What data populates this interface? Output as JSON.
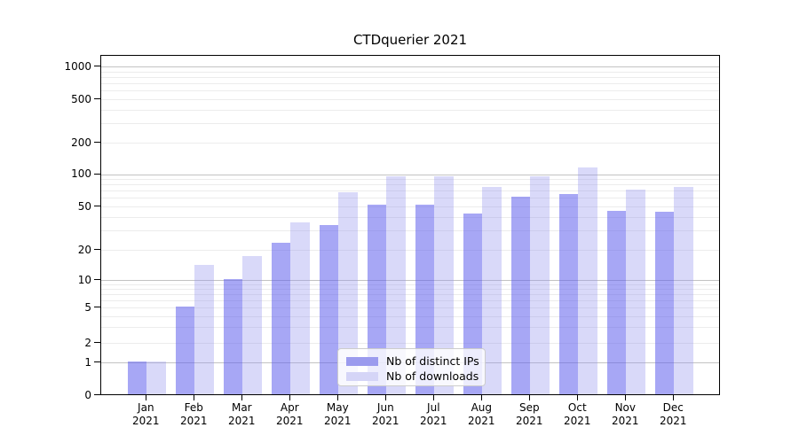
{
  "title": "CTDquerier 2021",
  "chart_data": {
    "type": "bar",
    "title": "CTDquerier 2021",
    "categories": [
      "Jan 2021",
      "Feb 2021",
      "Mar 2021",
      "Apr 2021",
      "May 2021",
      "Jun 2021",
      "Jul 2021",
      "Aug 2021",
      "Sep 2021",
      "Oct 2021",
      "Nov 2021",
      "Dec 2021"
    ],
    "x_tick_month": [
      "Jan",
      "Feb",
      "Mar",
      "Apr",
      "May",
      "Jun",
      "Jul",
      "Aug",
      "Sep",
      "Oct",
      "Nov",
      "Dec"
    ],
    "x_tick_year": "2021",
    "series": [
      {
        "name": "Nb of distinct IPs",
        "legend_color": "#9b9bee",
        "bar_color": "rgba(95,95,237,0.55)",
        "values": [
          1,
          5,
          10,
          23,
          33,
          51,
          51,
          42,
          60,
          64,
          45,
          44
        ]
      },
      {
        "name": "Nb of downloads",
        "legend_color": "#d5d5f7",
        "bar_color": "rgba(146,146,238,0.35)",
        "values": [
          1,
          14,
          17,
          35,
          66,
          94,
          94,
          74,
          94,
          113,
          70,
          75
        ]
      }
    ],
    "y_axis": {
      "scale": "log above 1, linear 0-1",
      "tick_values": [
        0,
        1,
        2,
        5,
        10,
        20,
        50,
        100,
        200,
        500,
        1000
      ]
    },
    "grid": {
      "major_values": [
        1,
        10,
        100,
        1000
      ],
      "minor_values": [
        2,
        3,
        4,
        5,
        6,
        7,
        8,
        9,
        20,
        30,
        40,
        50,
        60,
        70,
        80,
        90,
        200,
        300,
        400,
        500,
        600,
        700,
        800,
        900
      ],
      "major_color": "#c3c3c3",
      "minor_color": "#ececec"
    },
    "legend": {
      "position": "lower center",
      "entries": [
        "Nb of distinct IPs",
        "Nb of downloads"
      ]
    }
  }
}
